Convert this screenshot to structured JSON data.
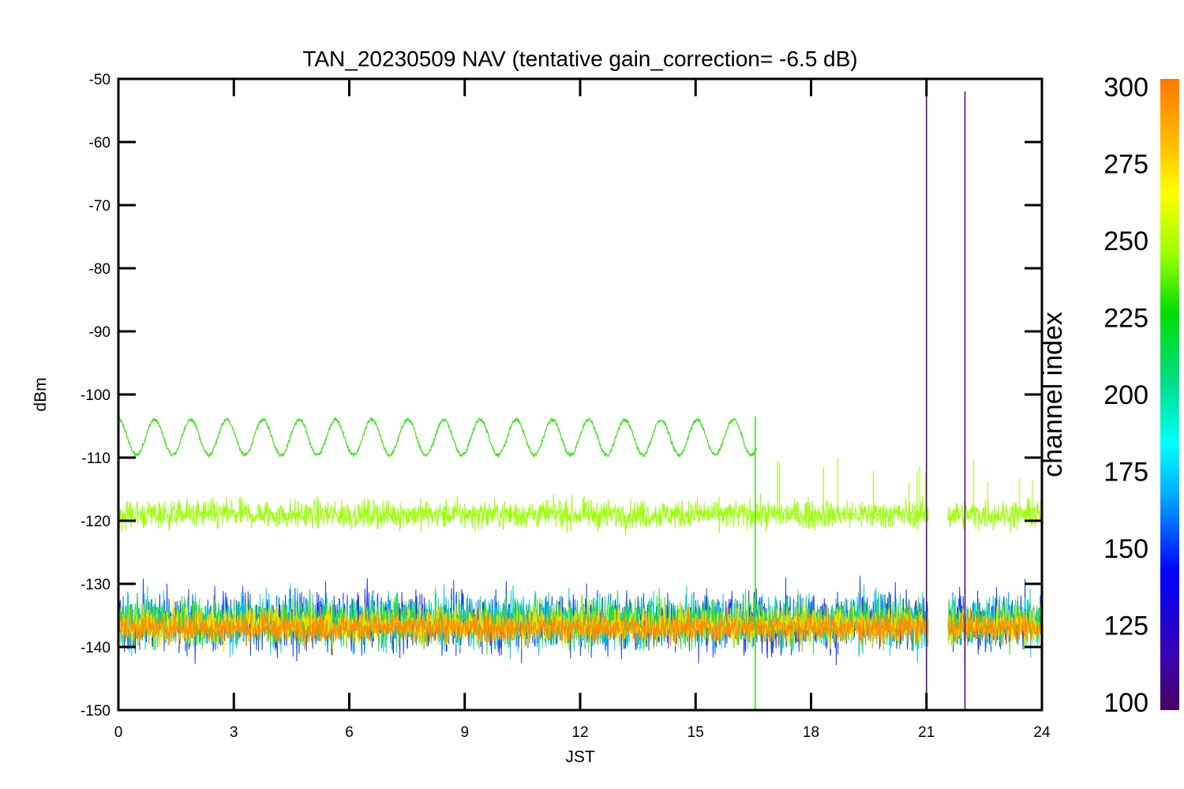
{
  "chart_data": {
    "type": "line",
    "title": "TAN_20230509 NAV (tentative gain_correction= -6.5 dB)",
    "xlabel": "JST",
    "ylabel": "dBm",
    "xlim": [
      0,
      24
    ],
    "ylim": [
      -150,
      -50
    ],
    "xticks": [
      0,
      3,
      6,
      9,
      12,
      15,
      18,
      21,
      24
    ],
    "yticks": [
      -50,
      -60,
      -70,
      -80,
      -90,
      -100,
      -110,
      -120,
      -130,
      -140,
      -150
    ],
    "colorbar": {
      "label": "channel index",
      "range": [
        100,
        300
      ],
      "ticks": [
        100,
        125,
        150,
        175,
        200,
        225,
        250,
        275,
        300
      ]
    },
    "data_gap_jst": [
      21.05,
      21.55
    ],
    "vertical_spikes": [
      {
        "x": 21.0,
        "y_top": -52,
        "color": "#5a0a7a"
      },
      {
        "x": 22.0,
        "y_top": -52,
        "color": "#5a0a7a"
      },
      {
        "x": 16.55,
        "y_top": -103.5,
        "color": "#44dd22"
      }
    ],
    "series": [
      {
        "channel": 240,
        "color": "#44dd22",
        "kind": "sinusoid",
        "x_range": [
          0,
          16.6
        ],
        "center": -106.8,
        "amplitude": 2.8,
        "period_h": 0.94
      },
      {
        "channel": 255,
        "color": "#99ff00",
        "kind": "noise_band",
        "x_range": [
          0,
          24
        ],
        "center": -119,
        "spread": 4.5
      },
      {
        "channel": 145,
        "color": "#1133ee",
        "kind": "noise_band",
        "x_range": [
          0,
          24
        ],
        "center": -136,
        "spread": 9.5
      },
      {
        "channel": 180,
        "color": "#00ccdd",
        "kind": "noise_band",
        "x_range": [
          0,
          24
        ],
        "center": -136,
        "spread": 8.5
      },
      {
        "channel": 230,
        "color": "#33dd33",
        "kind": "noise_band",
        "x_range": [
          0,
          24
        ],
        "center": -136,
        "spread": 7.5
      },
      {
        "channel": 270,
        "color": "#ffdd00",
        "kind": "noise_band",
        "x_range": [
          0,
          24
        ],
        "center": -136.5,
        "spread": 6
      },
      {
        "channel": 295,
        "color": "#ff8800",
        "kind": "noise_band",
        "x_range": [
          0,
          24
        ],
        "center": -137,
        "spread": 4.5
      }
    ]
  }
}
